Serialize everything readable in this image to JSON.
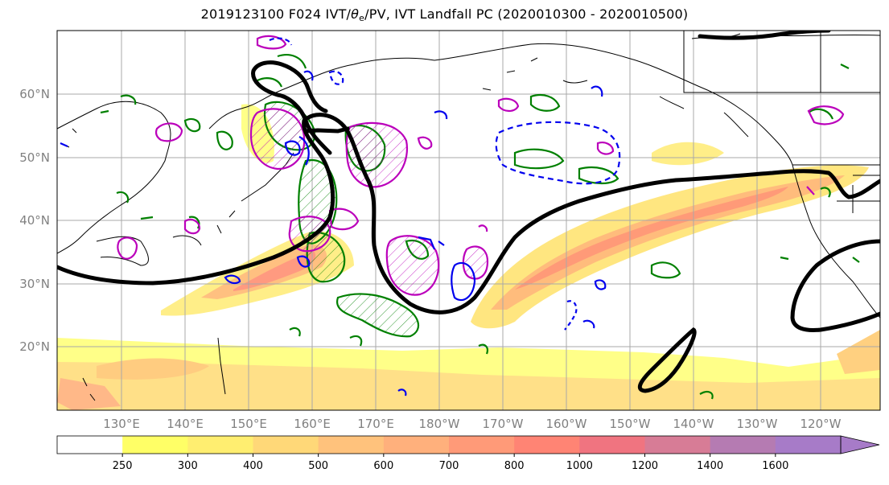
{
  "title": {
    "prefix": "2019123100 F024 IVT/",
    "theta": "θ",
    "theta_sub": "e",
    "suffix": "/PV, IVT Landfall PC (2020010300 - 2020010500)"
  },
  "map": {
    "lon_labels": [
      "130°E",
      "140°E",
      "150°E",
      "160°E",
      "170°E",
      "180°W",
      "170°W",
      "160°W",
      "150°W",
      "140°W",
      "130°W",
      "120°W"
    ],
    "lat_labels": [
      "60°N",
      "50°N",
      "40°N",
      "30°N",
      "20°N"
    ],
    "layers": {
      "ivt_fill": "IVT filled contours",
      "theta_e": "black thick contour",
      "pv_positive": "magenta contours",
      "pv_negative": "blue contours",
      "green": "green contours"
    }
  },
  "colorbar": {
    "ticks": [
      "250",
      "300",
      "400",
      "500",
      "600",
      "700",
      "800",
      "1000",
      "1200",
      "1400",
      "1600"
    ],
    "colors": [
      "#ffffff",
      "#ffff66",
      "#ffee70",
      "#ffd878",
      "#ffc27c",
      "#ffb07c",
      "#ff9a78",
      "#ff8474",
      "#f07480",
      "#d77c96",
      "#b57bb2",
      "#a77bc8"
    ]
  }
}
